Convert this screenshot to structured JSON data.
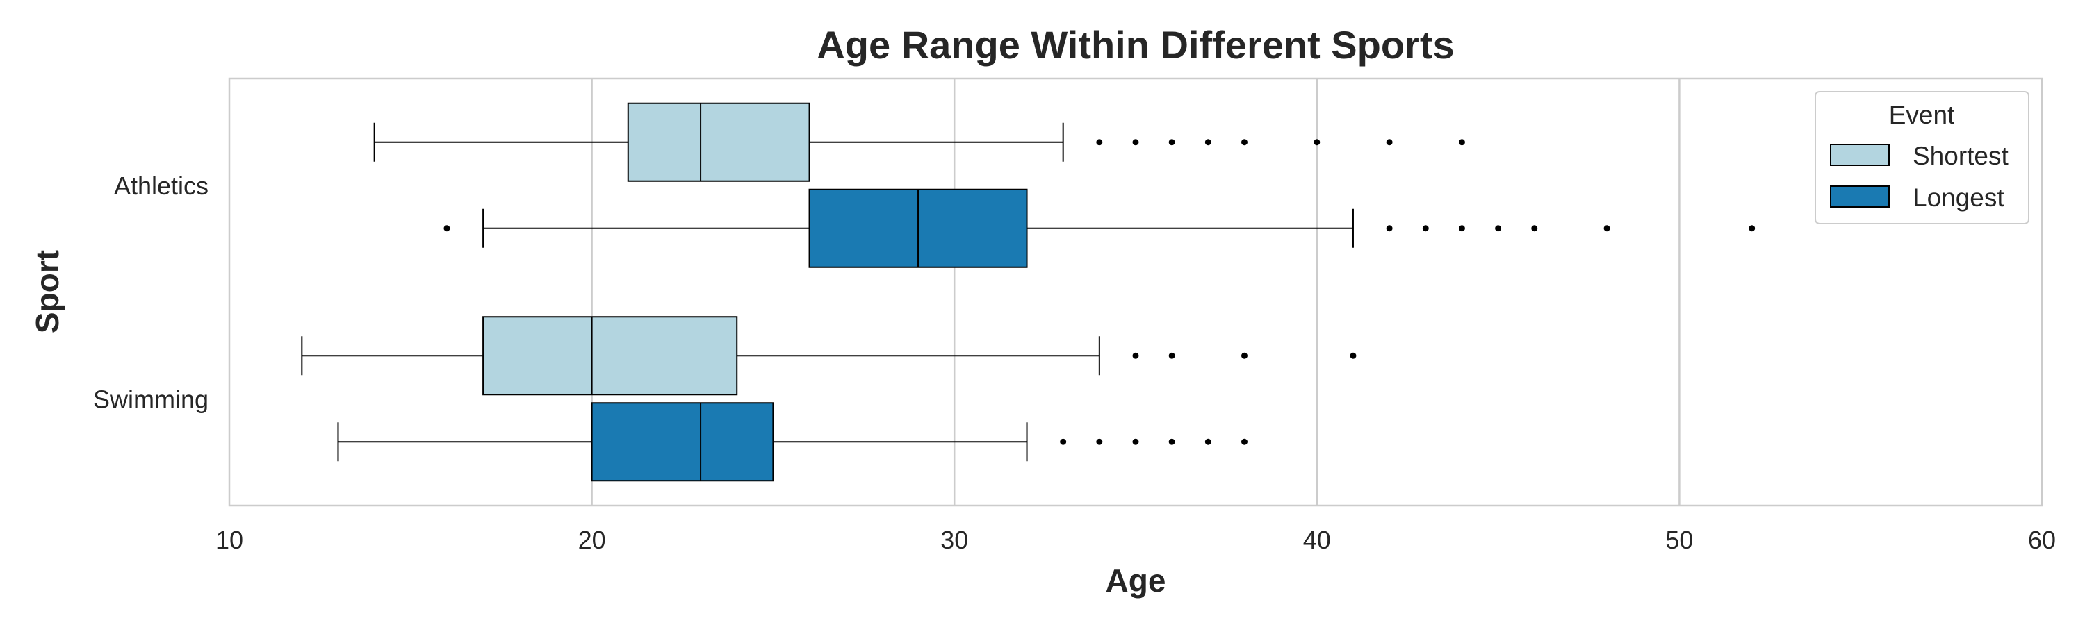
{
  "chart_data": {
    "type": "boxplot",
    "orientation": "horizontal",
    "title": "Age Range Within Different Sports",
    "xlabel": "Age",
    "ylabel": "Sport",
    "xlim": [
      10,
      60
    ],
    "xticks": [
      10,
      20,
      30,
      40,
      50,
      60
    ],
    "grid": "vertical",
    "categories": [
      "Athletics",
      "Swimming"
    ],
    "legend": {
      "title": "Event",
      "placement": "top-right"
    },
    "series": [
      {
        "name": "Shortest",
        "color": "#b3d5e0",
        "boxes": [
          {
            "category": "Athletics",
            "whisker_low": 14,
            "q1": 21,
            "median": 23,
            "q3": 26,
            "whisker_high": 33,
            "outliers": [
              34,
              35,
              36,
              37,
              38,
              40,
              42,
              44
            ]
          },
          {
            "category": "Swimming",
            "whisker_low": 12,
            "q1": 17,
            "median": 20,
            "q3": 24,
            "whisker_high": 34,
            "outliers": [
              35,
              36,
              38,
              41
            ]
          }
        ]
      },
      {
        "name": "Longest",
        "color": "#1a7ab2",
        "boxes": [
          {
            "category": "Athletics",
            "whisker_low": 17,
            "q1": 26,
            "median": 29,
            "q3": 32,
            "whisker_high": 41,
            "outliers": [
              16,
              42,
              43,
              44,
              45,
              46,
              48,
              52
            ]
          },
          {
            "category": "Swimming",
            "whisker_low": 13,
            "q1": 20,
            "median": 23,
            "q3": 25,
            "whisker_high": 32,
            "outliers": [
              33,
              34,
              35,
              36,
              37,
              38
            ]
          }
        ]
      }
    ]
  }
}
